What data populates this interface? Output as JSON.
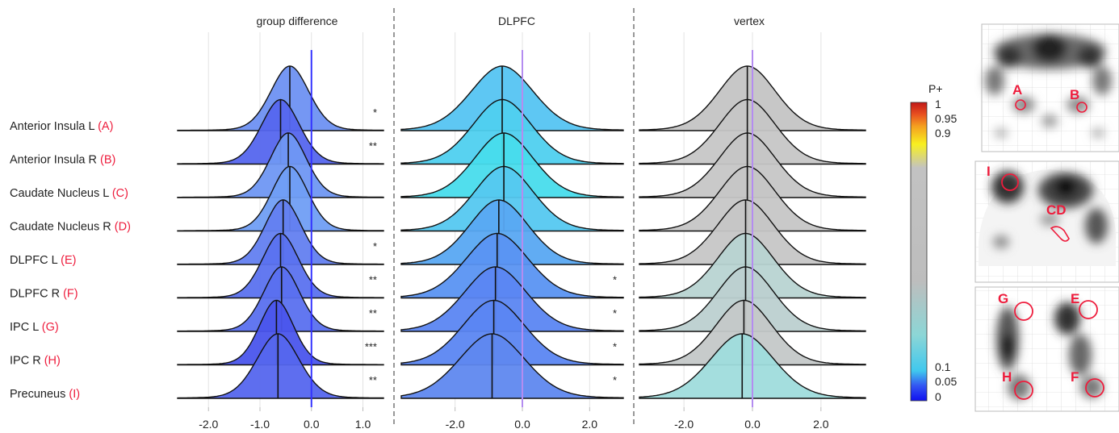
{
  "figure": {
    "panel_titles": [
      "group difference",
      "DLPFC",
      "vertex"
    ],
    "colorbar": {
      "title": "P+",
      "ticks": [
        "1",
        "0.95",
        "0.9",
        "0.1",
        "0.05",
        "0"
      ]
    },
    "brain_markers": [
      {
        "label": "A",
        "color": "#ee1c3c"
      },
      {
        "label": "B",
        "color": "#ee1c3c"
      },
      {
        "label": "I",
        "color": "#ee1c3c"
      },
      {
        "label": "CD",
        "color": "#ee1c3c"
      },
      {
        "label": "G",
        "color": "#ee1c3c"
      },
      {
        "label": "E",
        "color": "#ee1c3c"
      },
      {
        "label": "H",
        "color": "#ee1c3c"
      },
      {
        "label": "F",
        "color": "#ee1c3c"
      }
    ]
  },
  "chart_data": [
    {
      "type": "ridgeline",
      "title": "group difference",
      "rows": [
        {
          "name": "Anterior Insula L",
          "tag": "(A)",
          "median": -0.42,
          "sd": 0.38,
          "stars": "*",
          "color": "#6e91f2"
        },
        {
          "name": "Anterior Insula R",
          "tag": "(B)",
          "median": -0.6,
          "sd": 0.38,
          "stars": "**",
          "color": "#5566ee"
        },
        {
          "name": "Caudate Nucleus L",
          "tag": "(C)",
          "median": -0.45,
          "sd": 0.36,
          "stars": "",
          "color": "#6f97f3"
        },
        {
          "name": "Caudate Nucleus R",
          "tag": "(D)",
          "median": -0.42,
          "sd": 0.36,
          "stars": "",
          "color": "#709ef4"
        },
        {
          "name": "DLPFC L",
          "tag": "(E)",
          "median": -0.55,
          "sd": 0.36,
          "stars": "*",
          "color": "#6380f0"
        },
        {
          "name": "DLPFC R",
          "tag": "(F)",
          "median": -0.6,
          "sd": 0.36,
          "stars": "**",
          "color": "#5b72ef"
        },
        {
          "name": "IPC L",
          "tag": "(G)",
          "median": -0.58,
          "sd": 0.36,
          "stars": "**",
          "color": "#5a70ef"
        },
        {
          "name": "IPC R",
          "tag": "(H)",
          "median": -0.68,
          "sd": 0.34,
          "stars": "***",
          "color": "#4a55ec"
        },
        {
          "name": "Precuneus",
          "tag": "(I)",
          "median": -0.65,
          "sd": 0.42,
          "stars": "**",
          "color": "#5566ee"
        }
      ],
      "ref_line": {
        "x": 0.0,
        "color": "#3333ff"
      },
      "x_ticks": [
        -2.0,
        -1.0,
        0.0,
        1.0
      ],
      "x_tick_labels": [
        "-2.0",
        "-1.0",
        "0.0",
        "1.0"
      ],
      "xlim": [
        -2.6,
        1.4
      ]
    },
    {
      "type": "ridgeline",
      "title": "DLPFC",
      "rows": [
        {
          "name": "Anterior Insula L",
          "median": -0.6,
          "sd": 0.95,
          "stars": "",
          "color": "#55c4f2"
        },
        {
          "name": "Anterior Insula R",
          "median": -0.6,
          "sd": 0.9,
          "stars": "",
          "color": "#4fd0ef"
        },
        {
          "name": "Caudate Nucleus L",
          "median": -0.55,
          "sd": 0.9,
          "stars": "",
          "color": "#48dcec"
        },
        {
          "name": "Caudate Nucleus R",
          "median": -0.55,
          "sd": 0.9,
          "stars": "",
          "color": "#55c8f0"
        },
        {
          "name": "DLPFC L",
          "median": -0.7,
          "sd": 0.9,
          "stars": "",
          "color": "#58a8f2"
        },
        {
          "name": "DLPFC R",
          "median": -0.75,
          "sd": 0.95,
          "stars": "*",
          "color": "#5a94f2"
        },
        {
          "name": "IPC L",
          "median": -0.8,
          "sd": 0.95,
          "stars": "*",
          "color": "#5b86f2"
        },
        {
          "name": "IPC R",
          "median": -0.85,
          "sd": 0.95,
          "stars": "*",
          "color": "#5b86f2"
        },
        {
          "name": "Precuneus",
          "median": -0.9,
          "sd": 1.0,
          "stars": "*",
          "color": "#5f88ef"
        }
      ],
      "ref_line": {
        "x": 0.0,
        "color": "#b48cf0"
      },
      "x_ticks": [
        -2.0,
        0.0,
        2.0
      ],
      "x_tick_labels": [
        "-2.0",
        "0.0",
        "2.0"
      ],
      "xlim": [
        -3.6,
        3.0
      ]
    },
    {
      "type": "ridgeline",
      "title": "vertex",
      "rows": [
        {
          "name": "Anterior Insula L",
          "median": -0.15,
          "sd": 0.85,
          "stars": "",
          "color": "#c4c4c4"
        },
        {
          "name": "Anterior Insula R",
          "median": -0.15,
          "sd": 0.85,
          "stars": "",
          "color": "#c6c6c6"
        },
        {
          "name": "Caudate Nucleus L",
          "median": -0.15,
          "sd": 0.85,
          "stars": "",
          "color": "#c6c6c6"
        },
        {
          "name": "Caudate Nucleus R",
          "median": -0.15,
          "sd": 0.85,
          "stars": "",
          "color": "#c6c6c6"
        },
        {
          "name": "DLPFC L",
          "median": -0.2,
          "sd": 0.85,
          "stars": "",
          "color": "#c6c6c6"
        },
        {
          "name": "DLPFC R",
          "median": -0.2,
          "sd": 0.85,
          "stars": "",
          "color": "#b8d4d2"
        },
        {
          "name": "IPC L",
          "median": -0.2,
          "sd": 0.85,
          "stars": "",
          "color": "#bcd0d0"
        },
        {
          "name": "IPC R",
          "median": -0.25,
          "sd": 0.85,
          "stars": "",
          "color": "#c4c8c8"
        },
        {
          "name": "Precuneus",
          "median": -0.3,
          "sd": 0.95,
          "stars": "",
          "color": "#9fdcdc"
        }
      ],
      "ref_line": {
        "x": 0.0,
        "color": "#b48cf0"
      },
      "x_ticks": [
        -2.0,
        0.0,
        2.0
      ],
      "x_tick_labels": [
        "-2.0",
        "0.0",
        "2.0"
      ],
      "xlim": [
        -3.3,
        3.3
      ]
    }
  ]
}
